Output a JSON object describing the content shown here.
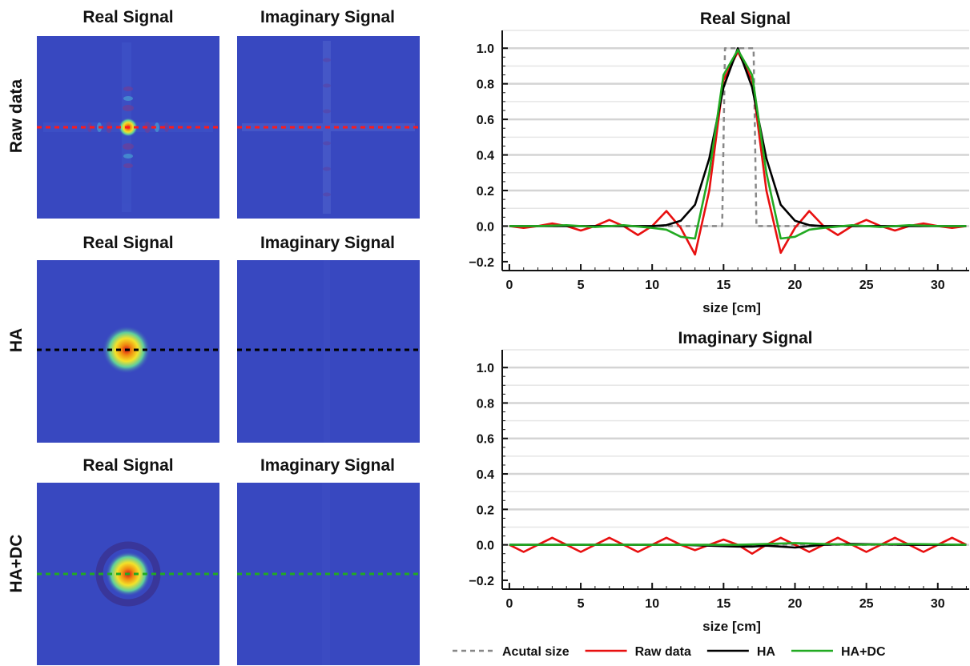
{
  "image_grid": {
    "columns": [
      "Real Signal",
      "Imaginary Signal"
    ],
    "rows": [
      {
        "label": "Raw data",
        "line_color": "#ff1a1a",
        "real_pattern": "sinc-cross",
        "imag_pattern": "faint-cross"
      },
      {
        "label": "HA",
        "line_color": "#000000",
        "real_pattern": "gaussian-blob",
        "imag_pattern": "flat"
      },
      {
        "label": "HA+DC",
        "line_color": "#22aa22",
        "real_pattern": "blob-with-ring",
        "imag_pattern": "flat"
      }
    ],
    "background_color": "#3848c0"
  },
  "legend": [
    {
      "label": "Acutal size",
      "color": "#888888",
      "style": "dashed"
    },
    {
      "label": "Raw data",
      "color": "#e81010",
      "style": "solid"
    },
    {
      "label": "HA",
      "color": "#000000",
      "style": "solid"
    },
    {
      "label": "HA+DC",
      "color": "#22aa22",
      "style": "solid"
    }
  ],
  "chart_data": [
    {
      "type": "line",
      "title": "Real Signal",
      "xlabel": "size [cm]",
      "ylabel": "",
      "xlim": [
        -0.5,
        32.2
      ],
      "ylim": [
        -0.25,
        1.1
      ],
      "xticks": [
        0,
        5,
        10,
        15,
        20,
        25,
        30
      ],
      "yticks": [
        -0.2,
        0.0,
        0.2,
        0.4,
        0.6,
        0.8,
        1.0
      ],
      "ytick_labels": [
        "−0.2",
        "0.0",
        "0.2",
        "0.4",
        "0.6",
        "0.8",
        "1.0"
      ],
      "grid": "horizontal",
      "series": [
        {
          "name": "Acutal size",
          "color": "#888888",
          "dashed": true,
          "x": [
            0,
            14.9,
            15.1,
            17.1,
            17.3,
            32
          ],
          "y": [
            0,
            0,
            1.0,
            1.0,
            0,
            0
          ]
        },
        {
          "name": "Raw data",
          "color": "#e81010",
          "x": [
            0,
            1,
            2,
            3,
            4,
            5,
            6,
            7,
            8,
            9,
            10,
            11,
            12,
            13,
            14,
            15,
            16,
            17,
            18,
            19,
            20,
            21,
            22,
            23,
            24,
            25,
            26,
            27,
            28,
            29,
            30,
            31,
            32
          ],
          "y": [
            0.0,
            -0.01,
            0.0,
            0.015,
            0.0,
            -0.025,
            0.0,
            0.035,
            0.0,
            -0.05,
            0.0,
            0.085,
            -0.01,
            -0.16,
            0.2,
            0.82,
            0.98,
            0.82,
            0.2,
            -0.15,
            -0.01,
            0.085,
            0.0,
            -0.05,
            0.0,
            0.035,
            0.0,
            -0.025,
            0.0,
            0.015,
            0.0,
            -0.01,
            0.0
          ]
        },
        {
          "name": "HA",
          "color": "#000000",
          "x": [
            0,
            10,
            11,
            12,
            13,
            14,
            15,
            16,
            17,
            18,
            19,
            20,
            21,
            22,
            32
          ],
          "y": [
            0.0,
            0.0,
            0.005,
            0.03,
            0.12,
            0.38,
            0.78,
            1.0,
            0.78,
            0.38,
            0.12,
            0.03,
            0.005,
            0.0,
            0.0
          ]
        },
        {
          "name": "HA+DC",
          "color": "#22aa22",
          "x": [
            0,
            2,
            4,
            6,
            8,
            10,
            11,
            12,
            13,
            14,
            15,
            16,
            17,
            18,
            19,
            20,
            21,
            22,
            24,
            26,
            28,
            30,
            32
          ],
          "y": [
            0.0,
            0.0,
            0.005,
            -0.005,
            0.005,
            -0.01,
            -0.02,
            -0.06,
            -0.07,
            0.3,
            0.85,
            0.99,
            0.85,
            0.3,
            -0.07,
            -0.06,
            -0.02,
            -0.01,
            0.005,
            -0.005,
            0.005,
            0.0,
            0.0
          ]
        }
      ]
    },
    {
      "type": "line",
      "title": "Imaginary Signal",
      "xlabel": "size [cm]",
      "ylabel": "",
      "xlim": [
        -0.5,
        32.2
      ],
      "ylim": [
        -0.25,
        1.1
      ],
      "xticks": [
        0,
        5,
        10,
        15,
        20,
        25,
        30
      ],
      "yticks": [
        -0.2,
        0.0,
        0.2,
        0.4,
        0.6,
        0.8,
        1.0
      ],
      "ytick_labels": [
        "−0.2",
        "0.0",
        "0.2",
        "0.4",
        "0.6",
        "0.8",
        "1.0"
      ],
      "grid": "horizontal",
      "series": [
        {
          "name": "Acutal size",
          "color": "#888888",
          "dashed": true,
          "x": [
            0,
            32
          ],
          "y": [
            0,
            0
          ]
        },
        {
          "name": "Raw data",
          "color": "#e81010",
          "x": [
            0,
            1,
            2,
            3,
            4,
            5,
            6,
            7,
            8,
            9,
            10,
            11,
            12,
            13,
            14,
            15,
            16,
            17,
            18,
            19,
            20,
            21,
            22,
            23,
            24,
            25,
            26,
            27,
            28,
            29,
            30,
            31,
            32
          ],
          "y": [
            0.0,
            -0.04,
            0.0,
            0.04,
            0.0,
            -0.04,
            0.0,
            0.04,
            0.0,
            -0.04,
            0.0,
            0.04,
            0.0,
            -0.03,
            0.0,
            0.03,
            0.0,
            -0.05,
            0.0,
            0.04,
            0.0,
            -0.04,
            0.0,
            0.04,
            0.0,
            -0.04,
            0.0,
            0.04,
            0.0,
            -0.04,
            0.0,
            0.04,
            0.0
          ]
        },
        {
          "name": "HA",
          "color": "#000000",
          "x": [
            0,
            4,
            8,
            12,
            14,
            16,
            17,
            18,
            20,
            22,
            24,
            28,
            32
          ],
          "y": [
            0.0,
            0.0,
            0.0,
            0.0,
            -0.005,
            -0.01,
            -0.01,
            -0.005,
            -0.015,
            0.0,
            0.005,
            0.0,
            0.0
          ]
        },
        {
          "name": "HA+DC",
          "color": "#22aa22",
          "x": [
            0,
            4,
            8,
            12,
            16,
            18,
            20,
            22,
            24,
            28,
            32
          ],
          "y": [
            0.0,
            0.0,
            0.0,
            0.0,
            0.0,
            0.005,
            0.01,
            0.005,
            0.0,
            0.005,
            0.0
          ]
        }
      ]
    }
  ]
}
